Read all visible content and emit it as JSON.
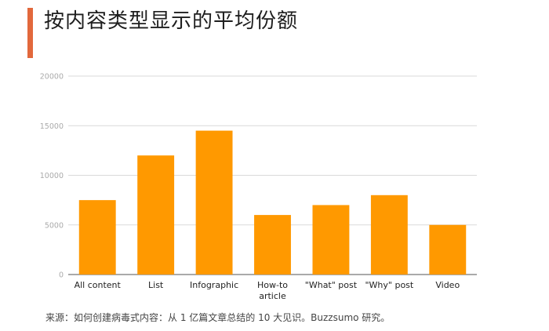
{
  "title": "按内容类型显示的平均份额",
  "source": "来源：如何创建病毒式内容：从 1 亿篇文章总结的 10 大见识。Buzzsumo 研究。",
  "colors": {
    "accent": "#e2683c",
    "bar": "#ff9900",
    "grid": "#d9d9d9",
    "tick": "#aaaaaa",
    "label": "#222222"
  },
  "chart_data": {
    "type": "bar",
    "title": "按内容类型显示的平均份额",
    "xlabel": "",
    "ylabel": "",
    "categories": [
      "All content",
      "List",
      "Infographic",
      "How-to\narticle",
      "\"What\" post",
      "\"Why\" post",
      "Video"
    ],
    "values": [
      7500,
      12000,
      14500,
      6000,
      7000,
      8000,
      5000
    ],
    "ylim": [
      0,
      20000
    ],
    "yticks": [
      0,
      5000,
      10000,
      15000,
      20000
    ],
    "grid": true,
    "legend": "none"
  }
}
